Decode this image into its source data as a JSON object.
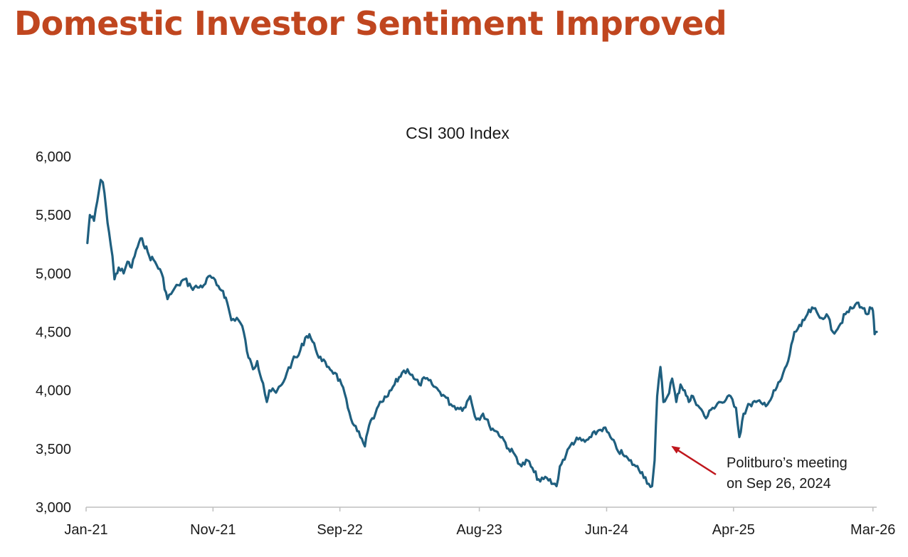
{
  "page": {
    "title": "Domestic Investor Sentiment Improved",
    "title_color": "#C0461F"
  },
  "chart_data": {
    "type": "line",
    "title": "CSI 300 Index",
    "xlabel": "",
    "ylabel": "",
    "ylim": [
      3000,
      6000
    ],
    "yticks": [
      "3,000",
      "3,500",
      "4,000",
      "4,500",
      "5,000",
      "5,500",
      "6,000"
    ],
    "ytick_values": [
      3000,
      3500,
      4000,
      4500,
      5000,
      5500,
      6000
    ],
    "xticks": [
      "Jan-21",
      "Nov-21",
      "Sep-22",
      "Aug-23",
      "Jun-24",
      "Apr-25",
      "Mar-26"
    ],
    "xtick_values": [
      "2021-01-01",
      "2021-11-01",
      "2022-09-01",
      "2023-08-01",
      "2024-06-01",
      "2025-04-01",
      "2026-03-01"
    ],
    "x_start": "2021-01-01",
    "x_end": "2026-03-10",
    "grid": false,
    "line_color": "#1F5F7F",
    "series": [
      {
        "x": [
          "2021-01-04",
          "2021-01-10",
          "2021-01-20",
          "2021-01-28",
          "2021-02-05",
          "2021-02-10",
          "2021-02-18",
          "2021-02-25",
          "2021-03-05",
          "2021-03-10",
          "2021-03-20",
          "2021-04-01",
          "2021-04-10",
          "2021-04-20",
          "2021-05-01",
          "2021-05-15",
          "2021-06-01",
          "2021-06-15",
          "2021-07-01",
          "2021-07-15",
          "2021-07-28",
          "2021-08-10",
          "2021-08-25",
          "2021-09-10",
          "2021-09-25",
          "2021-10-10",
          "2021-10-25",
          "2021-11-10",
          "2021-11-25",
          "2021-12-05",
          "2021-12-15",
          "2021-12-28",
          "2022-01-10",
          "2022-01-25",
          "2022-02-05",
          "2022-02-15",
          "2022-03-01",
          "2022-03-10",
          "2022-03-16",
          "2022-04-01",
          "2022-04-15",
          "2022-04-27",
          "2022-05-10",
          "2022-05-25",
          "2022-06-10",
          "2022-06-20",
          "2022-07-05",
          "2022-07-20",
          "2022-08-05",
          "2022-08-20",
          "2022-09-05",
          "2022-09-20",
          "2022-10-05",
          "2022-10-20",
          "2022-10-31",
          "2022-11-10",
          "2022-11-25",
          "2022-12-10",
          "2022-12-25",
          "2023-01-10",
          "2023-01-28",
          "2023-02-10",
          "2023-02-25",
          "2023-03-10",
          "2023-03-25",
          "2023-04-10",
          "2023-04-25",
          "2023-05-10",
          "2023-05-25",
          "2023-06-10",
          "2023-06-25",
          "2023-07-10",
          "2023-07-25",
          "2023-08-10",
          "2023-08-25",
          "2023-09-10",
          "2023-09-25",
          "2023-10-10",
          "2023-10-25",
          "2023-11-10",
          "2023-11-25",
          "2023-12-10",
          "2023-12-25",
          "2024-01-10",
          "2024-01-25",
          "2024-02-02",
          "2024-02-10",
          "2024-02-25",
          "2024-03-10",
          "2024-03-25",
          "2024-04-10",
          "2024-04-25",
          "2024-05-10",
          "2024-05-25",
          "2024-06-10",
          "2024-06-25",
          "2024-07-10",
          "2024-07-25",
          "2024-08-10",
          "2024-08-25",
          "2024-09-10",
          "2024-09-18",
          "2024-09-24",
          "2024-09-30",
          "2024-10-08",
          "2024-10-15",
          "2024-10-25",
          "2024-11-05",
          "2024-11-15",
          "2024-11-25",
          "2024-12-05",
          "2024-12-15",
          "2024-12-25",
          "2025-01-10",
          "2025-01-25",
          "2025-02-10",
          "2025-02-25",
          "2025-03-10",
          "2025-03-25",
          "2025-04-07",
          "2025-04-15",
          "2025-04-25",
          "2025-05-10",
          "2025-05-25",
          "2025-06-10",
          "2025-06-25",
          "2025-07-10",
          "2025-07-25",
          "2025-08-10",
          "2025-08-25",
          "2025-09-10",
          "2025-09-25",
          "2025-10-10",
          "2025-10-25",
          "2025-11-10",
          "2025-11-25",
          "2025-12-10",
          "2025-12-25",
          "2026-01-10",
          "2026-01-25",
          "2026-02-05",
          "2026-02-15",
          "2026-02-25",
          "2026-03-01",
          "2026-03-05",
          "2026-03-10"
        ],
        "values": [
          5260,
          5500,
          5450,
          5620,
          5800,
          5780,
          5550,
          5350,
          5150,
          4950,
          5050,
          5000,
          5100,
          5050,
          5200,
          5300,
          5150,
          5100,
          5000,
          4780,
          4850,
          4900,
          4950,
          4880,
          4880,
          4900,
          4980,
          4900,
          4850,
          4750,
          4600,
          4620,
          4550,
          4280,
          4180,
          4250,
          4060,
          3900,
          4000,
          3980,
          4050,
          4150,
          4250,
          4300,
          4450,
          4480,
          4350,
          4250,
          4200,
          4150,
          4050,
          3850,
          3700,
          3600,
          3520,
          3700,
          3800,
          3900,
          3950,
          4050,
          4150,
          4180,
          4100,
          4050,
          4100,
          4050,
          4000,
          3950,
          3880,
          3850,
          3850,
          3950,
          3750,
          3800,
          3700,
          3650,
          3600,
          3500,
          3450,
          3350,
          3400,
          3300,
          3220,
          3250,
          3200,
          3180,
          3350,
          3450,
          3550,
          3580,
          3560,
          3600,
          3650,
          3680,
          3600,
          3500,
          3450,
          3400,
          3350,
          3300,
          3200,
          3180,
          3400,
          3950,
          4200,
          3900,
          3950,
          4100,
          3900,
          4050,
          4000,
          3900,
          3950,
          3850,
          3760,
          3850,
          3900,
          3900,
          3950,
          3850,
          3600,
          3800,
          3880,
          3900,
          3880,
          3900,
          4000,
          4100,
          4250,
          4500,
          4550,
          4650,
          4700,
          4620,
          4650,
          4500,
          4550,
          4650,
          4700,
          4750,
          4700,
          4650,
          4700,
          4680,
          4480,
          4500
        ]
      }
    ],
    "annotation": {
      "text_line1": "Politburo’s meeting",
      "text_line2": "on Sep 26, 2024",
      "arrow_color": "#C0161C"
    }
  }
}
